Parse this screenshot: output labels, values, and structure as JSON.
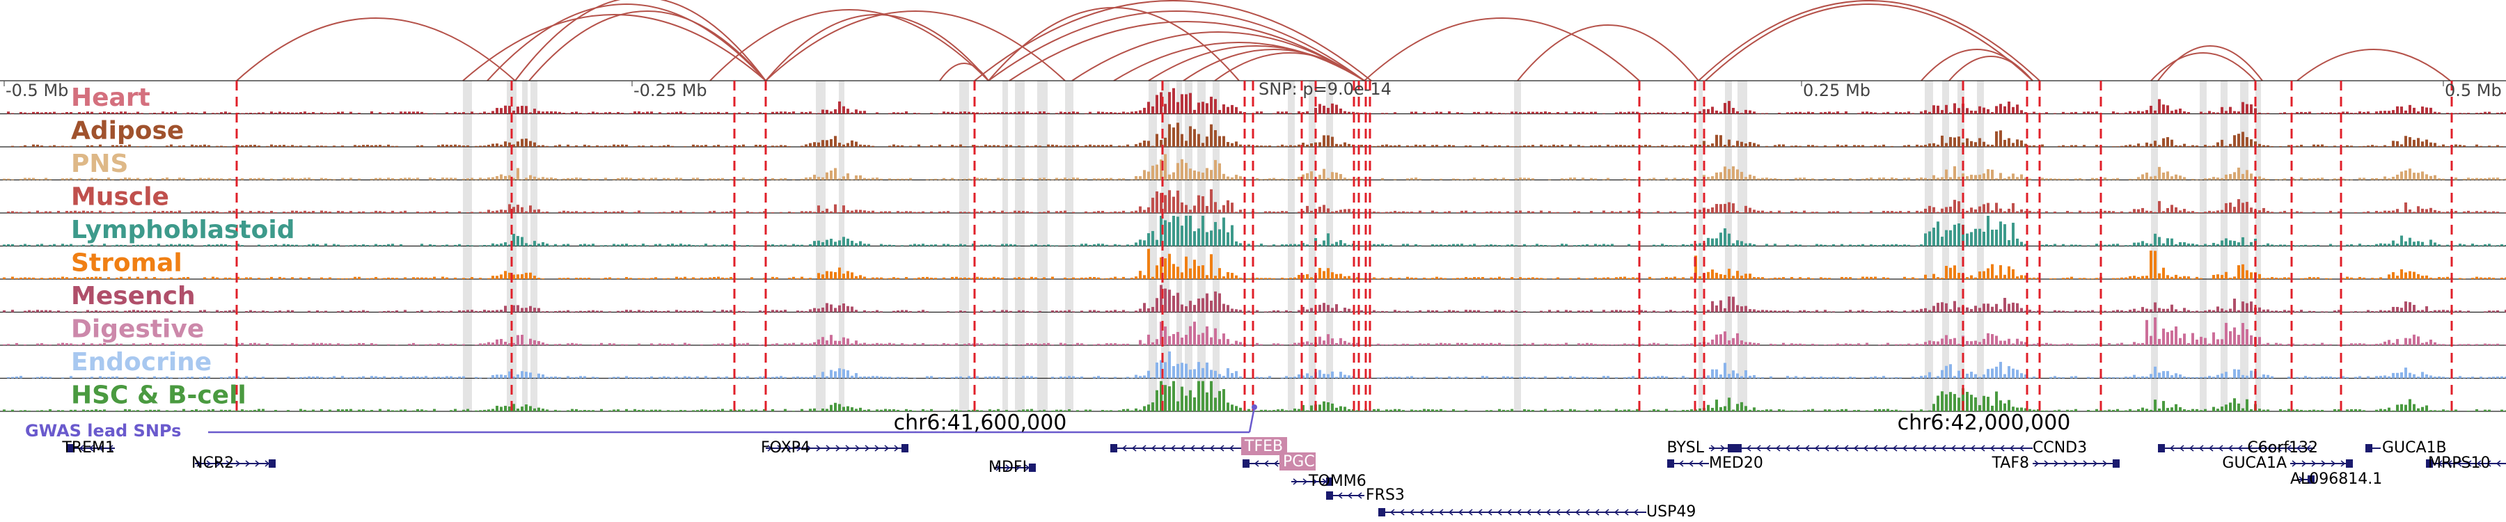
{
  "chart_data": {
    "type": "area",
    "title": "",
    "xlabel": "",
    "ylabel": "",
    "region": {
      "chrom": "chr6",
      "center": "chr6:41,600,000"
    },
    "axis_ticks": [
      "-0.5 Mb",
      "-0.25 Mb",
      "0.25 Mb",
      "0.5 Mb"
    ],
    "genomic_labels": [
      "chr6:41,600,000",
      "chr6:42,000,000"
    ],
    "snp_label": "SNP: p=9.0e-14",
    "gwas_label": "GWAS lead SNPs",
    "tracks": [
      {
        "name": "Heart",
        "color": "#d4707e",
        "data_color": "#b8323c"
      },
      {
        "name": "Adipose",
        "color": "#a0522d",
        "data_color": "#a0522d"
      },
      {
        "name": "PNS",
        "color": "#deb887",
        "data_color": "#d9a872"
      },
      {
        "name": "Muscle",
        "color": "#c0504d",
        "data_color": "#c0504d"
      },
      {
        "name": "Lymphoblastoid",
        "color": "#3d9a8b",
        "data_color": "#3d9a8b"
      },
      {
        "name": "Stromal",
        "color": "#f07f13",
        "data_color": "#f07f13"
      },
      {
        "name": "Mesench",
        "color": "#b04f6a",
        "data_color": "#b04f6a"
      },
      {
        "name": "Digestive",
        "color": "#cc88aa",
        "data_color": "#cc6e99"
      },
      {
        "name": "Endocrine",
        "color": "#a8c8f0",
        "data_color": "#8ab4ec"
      },
      {
        "name": "HSC & B-cell",
        "color": "#4a9a40",
        "data_color": "#4a9a40"
      }
    ],
    "genes": [
      {
        "name": "TREM1",
        "strand": "-"
      },
      {
        "name": "NCR2",
        "strand": "+"
      },
      {
        "name": "FOXP4",
        "strand": "+"
      },
      {
        "name": "MDFI",
        "strand": "+"
      },
      {
        "name": "TFEB",
        "strand": "-",
        "highlight": true
      },
      {
        "name": "PGC",
        "strand": "-",
        "highlight": true
      },
      {
        "name": "TOMM6",
        "strand": "+"
      },
      {
        "name": "FRS3",
        "strand": "-"
      },
      {
        "name": "USP49",
        "strand": "-"
      },
      {
        "name": "BYSL",
        "strand": "+"
      },
      {
        "name": "MED20",
        "strand": "-"
      },
      {
        "name": "CCND3",
        "strand": "-"
      },
      {
        "name": "TAF8",
        "strand": "+"
      },
      {
        "name": "C6orf132",
        "strand": "-"
      },
      {
        "name": "GUCA1A",
        "strand": "+"
      },
      {
        "name": "AL096814.1",
        "strand": "+"
      },
      {
        "name": "GUCA1B",
        "strand": "-"
      },
      {
        "name": "MRPS10",
        "strand": "-"
      }
    ],
    "grid": false
  }
}
